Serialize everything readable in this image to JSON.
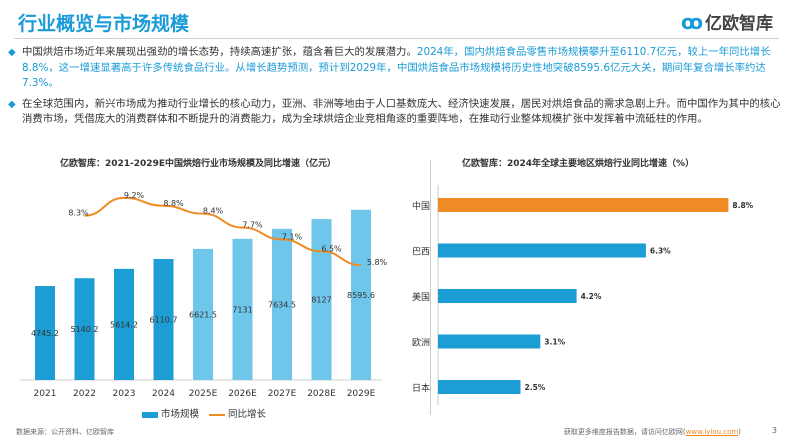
{
  "header": {
    "title": "行业概览与市场规模",
    "logo_text": "亿欧智库"
  },
  "bullets": [
    {
      "plain": "中国烘焙市场近年来展现出强劲的增长态势，持续高速扩张，蕴含着巨大的发展潜力。",
      "highlight": "2024年，国内烘焙食品零售市场规模攀升至6110.7亿元，较上一年同比增长8.8%，这一增速显著高于许多传统食品行业。从增长趋势预测，预计到2029年，中国烘焙食品市场规模将历史性地突破8595.6亿元大关，期间年复合增长率约达7.3%。"
    },
    {
      "plain": "在全球范围内，新兴市场成为推动行业增长的核心动力，亚洲、非洲等地由于人口基数庞大、经济快速发展，居民对烘焙食品的需求急剧上升。而中国作为其中的核心消费市场，凭借庞大的消费群体和不断提升的消费能力，成为全球烘焙企业竞相角逐的重要阵地，在推动行业整体规模扩张中发挥着中流砥柱的作用。",
      "highlight": ""
    }
  ],
  "chart_data": [
    {
      "type": "bar+line",
      "title": "亿欧智库：2021-2029E中国烘焙行业市场规模及同比增速（亿元）",
      "categories": [
        "2021",
        "2022",
        "2023",
        "2024",
        "2025E",
        "2026E",
        "2027E",
        "2028E",
        "2029E"
      ],
      "series": [
        {
          "name": "市场规模",
          "type": "bar",
          "values": [
            4745.2,
            5140.2,
            5614.2,
            6110.7,
            6621.5,
            7131,
            7634.5,
            8127,
            8595.6
          ],
          "labels": [
            "4745.2",
            "5140.2",
            "5614.2",
            "6110.7",
            "6621.5",
            "7131",
            "7634.5",
            "8127",
            "8595.6"
          ],
          "colors": {
            "actual": "#1c9ed4",
            "forecast": "#6ec6ea"
          }
        },
        {
          "name": "同比增长",
          "type": "line",
          "values": [
            null,
            8.3,
            9.2,
            8.8,
            8.4,
            7.7,
            7.1,
            6.5,
            5.8
          ],
          "labels": [
            "",
            "8.3%",
            "9.2%",
            "8.8%",
            "8.4%",
            "7.7%",
            "7.1%",
            "6.5%",
            "5.8%"
          ],
          "color": "#f08a24"
        }
      ],
      "ylim": [
        0,
        10000
      ],
      "y2lim": [
        0,
        10
      ],
      "legend": "bottom"
    },
    {
      "type": "bar",
      "orientation": "horizontal",
      "title": "亿欧智库：2024年全球主要地区烘焙行业同比增速（%）",
      "categories": [
        "中国",
        "巴西",
        "美国",
        "欧洲",
        "日本"
      ],
      "values": [
        8.8,
        6.3,
        4.2,
        3.1,
        2.5
      ],
      "labels": [
        "8.8%",
        "6.3%",
        "4.2%",
        "3.1%",
        "2.5%"
      ],
      "colors": {
        "highlight": "#f08a24",
        "default": "#1c9ed4"
      },
      "xlim": [
        0,
        9
      ]
    }
  ],
  "footer": {
    "source": "数据来源：公开资料、亿欧智库",
    "more": "获取更多维度报告数据，请访问亿欧网(",
    "link": "www.iyiou.com",
    "close": ")",
    "page": "3"
  }
}
